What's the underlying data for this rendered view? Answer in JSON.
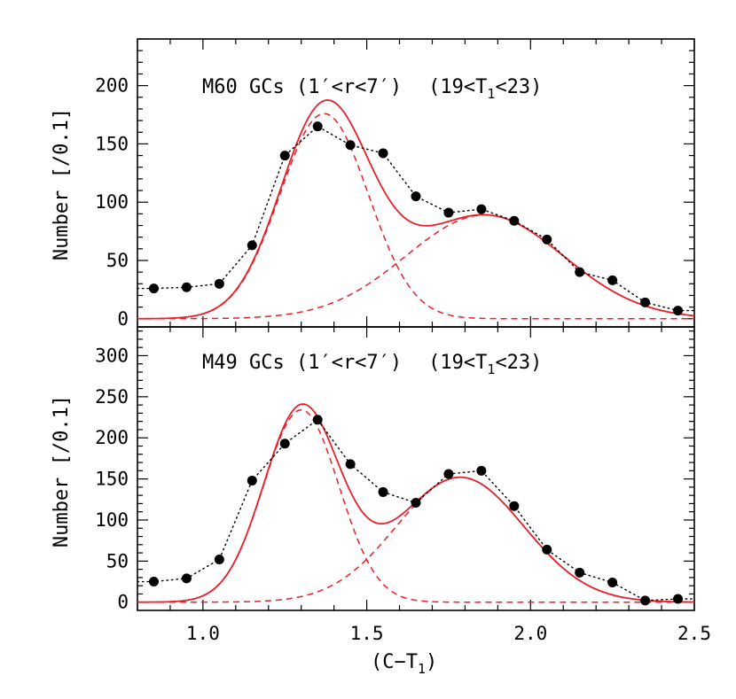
{
  "chart_data": [
    {
      "type": "line",
      "panel": "top",
      "title": "M60 GCs (1′<r<7′)",
      "title_mag": "(19<T",
      "title_mag_sub": "1",
      "title_mag_end": "<23)",
      "ylabel": "Number [/0.1]",
      "xlim": [
        0.8,
        2.5
      ],
      "ylim": [
        -7,
        240
      ],
      "yticks": [
        0,
        50,
        100,
        150,
        200
      ],
      "ytick_labels": [
        "0",
        "50",
        "100",
        "150",
        "200"
      ],
      "series": [
        {
          "style": "observed-points-dotted",
          "x": [
            0.85,
            0.95,
            1.05,
            1.15,
            1.25,
            1.35,
            1.45,
            1.55,
            1.65,
            1.75,
            1.85,
            1.95,
            2.05,
            2.15,
            2.25,
            2.35,
            2.45
          ],
          "y": [
            26,
            27,
            30,
            63,
            140,
            165,
            149,
            142,
            105,
            91,
            94,
            84,
            68,
            40,
            33,
            14,
            7
          ]
        },
        {
          "style": "gaussian-blue-dashed",
          "mu": 1.37,
          "sigma": 0.135,
          "amp": 176
        },
        {
          "style": "gaussian-red-dashed",
          "mu": 1.86,
          "sigma": 0.24,
          "amp": 89
        },
        {
          "style": "sum-solid"
        }
      ]
    },
    {
      "type": "line",
      "panel": "bottom",
      "title": "M49 GCs (1′<r<7′)",
      "title_mag": "(19<T",
      "title_mag_sub": "1",
      "title_mag_end": "<23)",
      "ylabel": "Number [/0.1]",
      "xlabel": "(C−T",
      "xlabel_sub": "1",
      "xlabel_end": ")",
      "xlim": [
        0.8,
        2.5
      ],
      "xticks": [
        1.0,
        1.5,
        2.0,
        2.5
      ],
      "xtick_labels": [
        "1.0",
        "1.5",
        "2.0",
        "2.5"
      ],
      "ylim": [
        -10,
        335
      ],
      "yticks": [
        0,
        50,
        100,
        150,
        200,
        250,
        300
      ],
      "ytick_labels": [
        "0",
        "50",
        "100",
        "150",
        "200",
        "250",
        "300"
      ],
      "series": [
        {
          "style": "observed-points-dotted",
          "x": [
            0.85,
            0.95,
            1.05,
            1.15,
            1.25,
            1.35,
            1.45,
            1.55,
            1.65,
            1.75,
            1.85,
            1.95,
            2.05,
            2.15,
            2.25,
            2.35,
            2.45
          ],
          "y": [
            25,
            29,
            52,
            148,
            193,
            222,
            168,
            134,
            121,
            156,
            160,
            117,
            64,
            36,
            24,
            2,
            4
          ]
        },
        {
          "style": "gaussian-blue-dashed",
          "mu": 1.3,
          "sigma": 0.115,
          "amp": 234
        },
        {
          "style": "gaussian-red-dashed",
          "mu": 1.785,
          "sigma": 0.195,
          "amp": 152
        },
        {
          "style": "sum-solid"
        }
      ]
    }
  ],
  "colors": {
    "model": "#e8202a",
    "data": "#000000",
    "axes": "#000000"
  }
}
